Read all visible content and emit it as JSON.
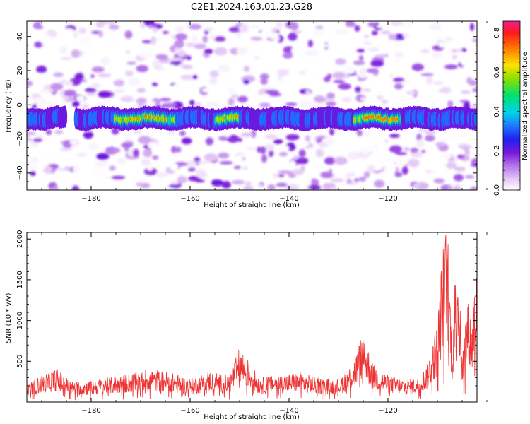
{
  "title": "C2E1.2024.163.01.23.G28",
  "chart_data": [
    {
      "type": "heatmap",
      "xlabel": "Height of straight line (km)",
      "ylabel": "Frequency (Hz)",
      "xlim": [
        -193,
        -102
      ],
      "ylim": [
        -50,
        49
      ],
      "xticks": [
        -180,
        -160,
        -140,
        -120
      ],
      "yticks": [
        -40,
        -20,
        0,
        20,
        40
      ],
      "colorbar": {
        "label": "Normalized spectral amplitude",
        "range": [
          0,
          0.86
        ],
        "ticks": [
          "0.0",
          "0.2",
          "0.4",
          "0.6",
          "0.8"
        ]
      },
      "features": {
        "band_center_hz": -8,
        "band_peak_amplitude": 0.85,
        "band_segments_km": [
          [
            -193,
            -185
          ],
          [
            -183,
            -102
          ]
        ],
        "background_noise_amplitude_max": 0.2
      }
    },
    {
      "type": "line",
      "xlabel": "Height of straight line (km)",
      "ylabel": "SNR (10 * v/v)",
      "xlim": [
        -193,
        -102
      ],
      "ylim": [
        0,
        2080
      ],
      "xticks": [
        -180,
        -160,
        -140,
        -120
      ],
      "yticks": [
        500,
        1000,
        1500,
        2000
      ],
      "series": [
        {
          "color": "#ee3333",
          "x": [
            -193,
            -190,
            -187,
            -184,
            -180,
            -176,
            -172,
            -168,
            -164,
            -160,
            -156,
            -152,
            -150,
            -146,
            -142,
            -138,
            -134,
            -130,
            -127,
            -125,
            -123,
            -120,
            -117,
            -114,
            -112,
            -110,
            -109,
            -108,
            -107,
            -106,
            -105.5,
            -105,
            -104,
            -103,
            -102.5,
            -102
          ],
          "values": [
            200,
            300,
            380,
            230,
            240,
            280,
            320,
            380,
            330,
            260,
            350,
            300,
            620,
            280,
            300,
            340,
            270,
            260,
            450,
            800,
            420,
            300,
            260,
            260,
            430,
            900,
            1700,
            2050,
            700,
            2000,
            1200,
            500,
            1200,
            900,
            1400,
            1500
          ]
        }
      ]
    }
  ]
}
